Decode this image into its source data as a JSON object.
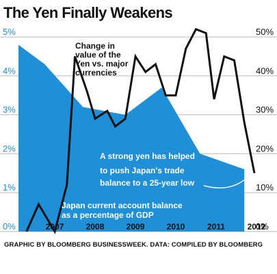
{
  "title": "The Yen Finally Weakens",
  "credit": "GRAPHIC BY BLOOMBERG BUSINESSWEEK. DATA: COMPILED BY BLOOMBERG",
  "colors": {
    "area": "#1f8fd8",
    "line": "#111111",
    "grid": "#bbbbbb",
    "left_axis": "#1f8fd8"
  },
  "chart_data": {
    "type": "area",
    "x_tick_labels": [
      "2007",
      "2008",
      "2009",
      "2010",
      "2011",
      "2012"
    ],
    "left_axis": {
      "ticks": [
        "0%",
        "1%",
        "2%",
        "3%",
        "4%",
        "5%"
      ],
      "range": [
        0,
        5
      ]
    },
    "right_axis": {
      "ticks": [
        "0%",
        "10%",
        "20%",
        "30%",
        "40%",
        "50%"
      ],
      "range": [
        0,
        50
      ]
    },
    "grid": true,
    "series": [
      {
        "name": "Japan current account balance as a percentage of GDP",
        "type": "area",
        "axis": "left",
        "x": [
          2006.6,
          2007.25,
          2008.2,
          2009.25,
          2010.15,
          2011.1,
          2012.2
        ],
        "values": [
          4.8,
          4.3,
          3.2,
          3.0,
          3.7,
          2.0,
          1.6
        ]
      },
      {
        "name": "Change in value of the Yen vs. major currencies",
        "type": "line",
        "axis": "right",
        "x": [
          2006.8,
          2007.1,
          2007.5,
          2007.8,
          2008.0,
          2008.3,
          2008.5,
          2008.8,
          2009.0,
          2009.25,
          2009.5,
          2009.75,
          2010.0,
          2010.25,
          2010.5,
          2010.75,
          2011.0,
          2011.25,
          2011.45,
          2011.7,
          2011.95,
          2012.2,
          2012.45
        ],
        "values": [
          0,
          7,
          0,
          12,
          45,
          36,
          29,
          31,
          27,
          29,
          45,
          41,
          43,
          35,
          35,
          47,
          52,
          51,
          34,
          45,
          44,
          28,
          15
        ]
      }
    ],
    "annotations": [
      "Change in value of the Yen vs. major currencies",
      "A strong yen has helped to push Japan's trade balance to a 25-year low",
      "Japan current account balance as a percentage of GDP"
    ]
  }
}
